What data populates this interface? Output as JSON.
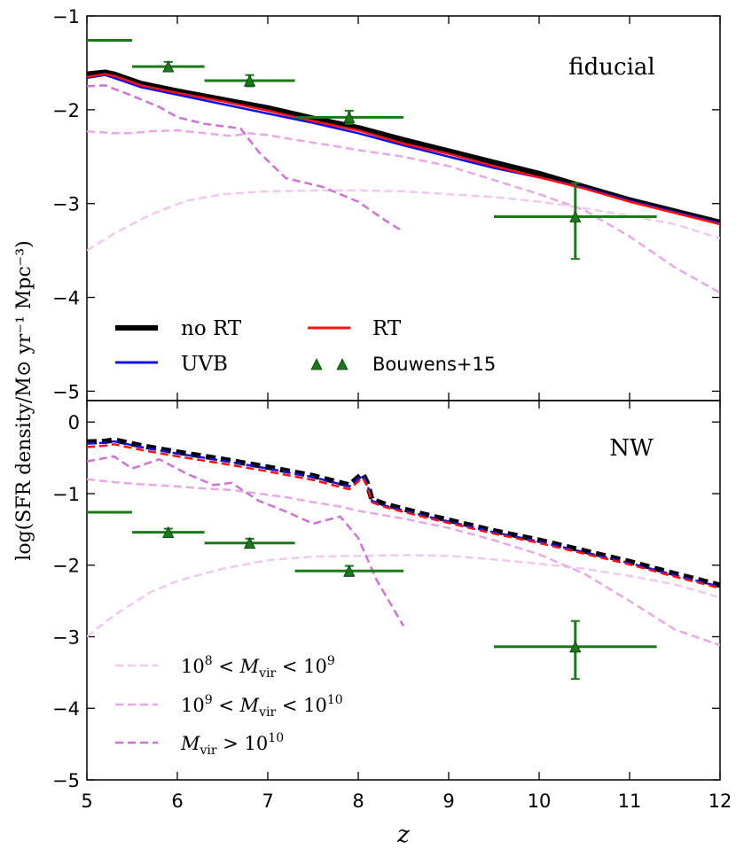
{
  "chart_data": {
    "type": "line",
    "shared_x": {
      "xlabel": "z",
      "xlim": [
        5,
        12
      ],
      "xticks": [
        5,
        6,
        7,
        8,
        9,
        10,
        11,
        12
      ],
      "xtick_labels": [
        "5",
        "6",
        "7",
        "8",
        "9",
        "10",
        "11",
        "12"
      ]
    },
    "ylabel": "log(SFR density/M⊙ yr⁻¹ Mpc⁻³)",
    "panels": [
      {
        "id": "fiducial",
        "title": "fiducial",
        "ylim": [
          -5.1,
          -1
        ],
        "yticks": [
          -5,
          -4,
          -3,
          -2,
          -1
        ],
        "ytick_labels": [
          "−5",
          "−4",
          "−3",
          "−2",
          "−1"
        ],
        "legend": {
          "placement": "lower-left",
          "entries": [
            {
              "label": "no RT",
              "series": "no_rt"
            },
            {
              "label": "RT",
              "series": "rt"
            },
            {
              "label": "UVB",
              "series": "uvb"
            },
            {
              "label": "Bouwens+15",
              "series": "bouwens"
            }
          ]
        },
        "series": [
          {
            "key": "m8",
            "name": "10^8 < Mvir < 10^9",
            "color": "#f0c8f0",
            "style": "dashed",
            "width": 2.5,
            "x": [
              5,
              5.3,
              5.7,
              6.1,
              6.5,
              7,
              7.5,
              8,
              8.5,
              9,
              9.5,
              10,
              10.5,
              11,
              11.5,
              12
            ],
            "y": [
              -3.5,
              -3.32,
              -3.12,
              -2.97,
              -2.9,
              -2.87,
              -2.86,
              -2.86,
              -2.87,
              -2.9,
              -2.93,
              -2.98,
              -3.05,
              -3.13,
              -3.22,
              -3.37
            ]
          },
          {
            "key": "m9",
            "name": "10^9 < Mvir < 10^10",
            "color": "#e8a8e8",
            "style": "dashed",
            "width": 2.5,
            "x": [
              5,
              5.3,
              5.5,
              5.7,
              6,
              6.3,
              6.6,
              6.8,
              7,
              7.3,
              7.7,
              8,
              8.5,
              9,
              9.5,
              10,
              10.5,
              11,
              11.5,
              12
            ],
            "y": [
              -2.23,
              -2.25,
              -2.25,
              -2.23,
              -2.22,
              -2.25,
              -2.28,
              -2.25,
              -2.27,
              -2.32,
              -2.38,
              -2.43,
              -2.5,
              -2.6,
              -2.75,
              -2.9,
              -3.07,
              -3.35,
              -3.68,
              -3.95
            ]
          },
          {
            "key": "m10",
            "name": "Mvir > 10^10",
            "color": "#d070d8",
            "style": "dashed",
            "width": 2.5,
            "x": [
              5,
              5.2,
              5.5,
              5.8,
              6,
              6.3,
              6.7,
              6.9,
              7.2,
              7.6,
              8,
              8.3,
              8.5
            ],
            "y": [
              -1.75,
              -1.74,
              -1.85,
              -1.97,
              -2.08,
              -2.15,
              -2.2,
              -2.45,
              -2.73,
              -2.82,
              -2.98,
              -3.18,
              -3.3
            ]
          },
          {
            "key": "no_rt",
            "name": "no RT",
            "color": "#000000",
            "style": "solid",
            "width": 6,
            "x": [
              5,
              5.2,
              5.3,
              5.6,
              6,
              6.5,
              7,
              7.5,
              8,
              8.5,
              9,
              9.5,
              10,
              10.5,
              11,
              11.5,
              12
            ],
            "y": [
              -1.62,
              -1.6,
              -1.62,
              -1.72,
              -1.8,
              -1.89,
              -1.98,
              -2.09,
              -2.19,
              -2.32,
              -2.44,
              -2.56,
              -2.68,
              -2.82,
              -2.96,
              -3.08,
              -3.2
            ]
          },
          {
            "key": "uvb",
            "name": "UVB",
            "color": "#1010e0",
            "style": "solid",
            "width": 2.5,
            "x": [
              5,
              5.2,
              5.3,
              5.6,
              6,
              6.5,
              7,
              7.5,
              8,
              8.5,
              9,
              9.5,
              10,
              10.5,
              11,
              11.5,
              12
            ],
            "y": [
              -1.66,
              -1.63,
              -1.66,
              -1.76,
              -1.84,
              -1.94,
              -2.04,
              -2.14,
              -2.25,
              -2.38,
              -2.5,
              -2.62,
              -2.72,
              -2.83,
              -2.97,
              -3.09,
              -3.21
            ]
          },
          {
            "key": "rt",
            "name": "RT",
            "color": "#ff1010",
            "style": "solid",
            "width": 2.5,
            "x": [
              5,
              5.2,
              5.3,
              5.6,
              6,
              6.5,
              7,
              7.5,
              8,
              8.5,
              9,
              9.5,
              10,
              10.5,
              11,
              11.5,
              12
            ],
            "y": [
              -1.65,
              -1.62,
              -1.64,
              -1.74,
              -1.82,
              -1.91,
              -2.01,
              -2.12,
              -2.22,
              -2.36,
              -2.47,
              -2.6,
              -2.72,
              -2.84,
              -2.98,
              -3.1,
              -3.22
            ]
          }
        ]
      },
      {
        "id": "nw",
        "title": "NW",
        "ylim": [
          -5,
          0.3
        ],
        "yticks": [
          -5,
          -4,
          -3,
          -2,
          -1,
          0
        ],
        "ytick_labels": [
          "−5",
          "−4",
          "−3",
          "−2",
          "−1",
          "0"
        ],
        "legend": {
          "placement": "lower-left",
          "entries": [
            {
              "label": "10^8 < Mvir < 10^9",
              "series": "m8"
            },
            {
              "label": "10^9 < Mvir < 10^10",
              "series": "m9"
            },
            {
              "label": "Mvir > 10^10",
              "series": "m10"
            }
          ]
        },
        "series": [
          {
            "key": "m8",
            "name": "10^8 < Mvir < 10^9",
            "color": "#f0c8f0",
            "style": "dashed",
            "width": 2.5,
            "x": [
              5,
              5.3,
              5.7,
              6,
              6.5,
              7,
              7.5,
              8,
              8.5,
              9,
              9.5,
              10,
              10.5,
              11,
              11.5,
              12
            ],
            "y": [
              -3.0,
              -2.7,
              -2.38,
              -2.22,
              -2.05,
              -1.93,
              -1.88,
              -1.87,
              -1.86,
              -1.87,
              -1.92,
              -1.98,
              -2.05,
              -2.15,
              -2.27,
              -2.45
            ]
          },
          {
            "key": "m9",
            "name": "10^9 < Mvir < 10^10",
            "color": "#e8a8e8",
            "style": "dashed",
            "width": 2.5,
            "x": [
              5,
              5.3,
              5.6,
              6,
              6.3,
              6.6,
              6.9,
              7.2,
              7.5,
              7.8,
              8,
              8.5,
              9,
              9.5,
              10,
              10.5,
              11,
              11.5,
              12
            ],
            "y": [
              -0.8,
              -0.84,
              -0.87,
              -0.9,
              -0.93,
              -0.95,
              -1.0,
              -1.05,
              -1.12,
              -1.18,
              -1.24,
              -1.35,
              -1.48,
              -1.65,
              -1.85,
              -2.12,
              -2.5,
              -2.9,
              -3.12
            ]
          },
          {
            "key": "m10",
            "name": "Mvir > 10^10",
            "color": "#d070d8",
            "style": "dashed",
            "width": 2.5,
            "x": [
              5,
              5.3,
              5.5,
              5.8,
              6.1,
              6.4,
              6.6,
              6.9,
              7.2,
              7.5,
              7.8,
              8,
              8.2,
              8.5
            ],
            "y": [
              -0.55,
              -0.48,
              -0.65,
              -0.52,
              -0.72,
              -0.88,
              -0.85,
              -1.1,
              -1.25,
              -1.42,
              -1.32,
              -1.62,
              -2.2,
              -2.85
            ]
          },
          {
            "key": "no_rt",
            "name": "no RT",
            "color": "#000000",
            "style": "dashed",
            "width": 6,
            "x": [
              5,
              5.2,
              5.3,
              5.6,
              6,
              6.5,
              7,
              7.5,
              7.9,
              8.02,
              8.05,
              8.1,
              8.15,
              8.3,
              8.7,
              9,
              9.5,
              10,
              10.5,
              11,
              11.5,
              12
            ],
            "y": [
              -0.28,
              -0.27,
              -0.25,
              -0.33,
              -0.42,
              -0.52,
              -0.63,
              -0.75,
              -0.88,
              -0.75,
              -0.72,
              -0.85,
              -1.08,
              -1.15,
              -1.28,
              -1.37,
              -1.52,
              -1.65,
              -1.8,
              -1.95,
              -2.12,
              -2.28
            ]
          },
          {
            "key": "uvb",
            "name": "UVB",
            "color": "#1010e0",
            "style": "dashed",
            "width": 2.5,
            "x": [
              5,
              5.2,
              5.3,
              5.6,
              6,
              6.5,
              7,
              7.5,
              7.9,
              8.02,
              8.05,
              8.1,
              8.15,
              8.3,
              8.7,
              9,
              9.5,
              10,
              10.5,
              11,
              11.5,
              12
            ],
            "y": [
              -0.3,
              -0.29,
              -0.27,
              -0.35,
              -0.44,
              -0.54,
              -0.65,
              -0.77,
              -0.9,
              -0.77,
              -0.74,
              -0.87,
              -1.1,
              -1.17,
              -1.3,
              -1.39,
              -1.54,
              -1.67,
              -1.82,
              -1.97,
              -2.14,
              -2.3
            ]
          },
          {
            "key": "rt",
            "name": "RT",
            "color": "#ff1010",
            "style": "dashed",
            "width": 2.5,
            "x": [
              5,
              5.2,
              5.3,
              5.6,
              6,
              6.5,
              7,
              7.5,
              7.9,
              8.02,
              8.05,
              8.1,
              8.15,
              8.3,
              8.7,
              9,
              9.5,
              10,
              10.5,
              11,
              11.5,
              12
            ],
            "y": [
              -0.35,
              -0.33,
              -0.31,
              -0.39,
              -0.48,
              -0.58,
              -0.69,
              -0.81,
              -0.94,
              -0.81,
              -0.78,
              -0.9,
              -1.12,
              -1.19,
              -1.32,
              -1.41,
              -1.56,
              -1.69,
              -1.84,
              -1.99,
              -2.16,
              -2.32
            ]
          }
        ]
      }
    ],
    "observations": {
      "name": "Bouwens+15",
      "color": "#1a7a1a",
      "marker": "triangle",
      "points": [
        {
          "x": 5.9,
          "y": -1.54,
          "xlo": 5.5,
          "xhi": 6.3,
          "ylo": -1.59,
          "yhi": -1.49
        },
        {
          "x": 6.8,
          "y": -1.69,
          "xlo": 6.3,
          "xhi": 7.3,
          "ylo": -1.75,
          "yhi": -1.63
        },
        {
          "x": 7.9,
          "y": -2.08,
          "xlo": 7.3,
          "xhi": 8.5,
          "ylo": -2.15,
          "yhi": -2.01
        },
        {
          "x": 10.4,
          "y": -3.14,
          "xlo": 9.5,
          "xhi": 11.3,
          "ylo": -3.59,
          "yhi": -2.78
        }
      ],
      "upper_bin": {
        "x": 5.25,
        "xlo": 5.0,
        "xhi": 5.5,
        "y": -1.26
      }
    }
  }
}
